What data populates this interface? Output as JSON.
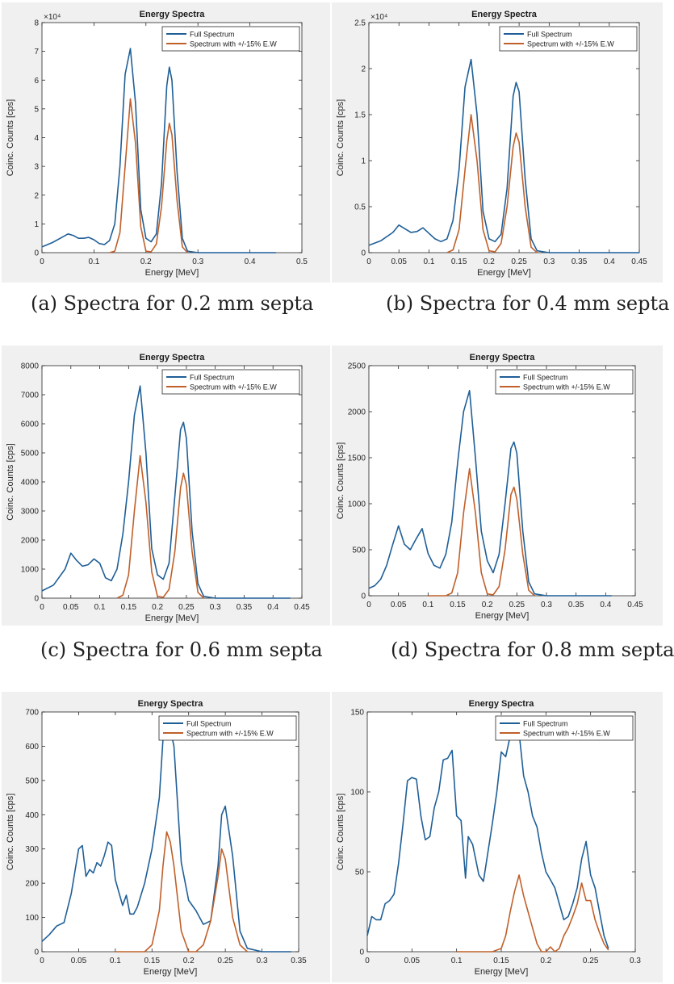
{
  "colors": {
    "full": "#1f5f97",
    "windowed": "#c0602a",
    "panel_bg": "#f0f0f0",
    "axes_bg": "#ffffff"
  },
  "captions": [
    "(a) Spectra for 0.2 mm septa",
    "(b) Spectra for 0.4 mm septa",
    "(c) Spectra for 0.6 mm septa",
    "(d) Spectra for 0.8 mm septa"
  ],
  "chart_data": [
    {
      "type": "line",
      "title": "Energy Spectra",
      "xlabel": "Energy [MeV]",
      "ylabel": "Coinc. Counts [cps]",
      "xlim": [
        0,
        0.5
      ],
      "ylim": [
        0,
        80000
      ],
      "xticks": [
        0,
        0.1,
        0.2,
        0.3,
        0.4,
        0.5
      ],
      "xtick_labels": [
        "0",
        "0.1",
        "0.2",
        "0.3",
        "0.4",
        "0.5"
      ],
      "yticks": [
        0,
        10000,
        20000,
        30000,
        40000,
        50000,
        60000,
        70000,
        80000
      ],
      "ytick_labels": [
        "0",
        "1",
        "2",
        "3",
        "4",
        "5",
        "6",
        "7",
        "8"
      ],
      "exponent_label": "×10⁴",
      "legend_position": "top-right",
      "series": [
        {
          "name": "Full Spectrum",
          "color": "#1f5f97",
          "x": [
            0,
            0.02,
            0.04,
            0.05,
            0.06,
            0.07,
            0.08,
            0.09,
            0.1,
            0.11,
            0.12,
            0.13,
            0.14,
            0.15,
            0.16,
            0.17,
            0.18,
            0.19,
            0.2,
            0.21,
            0.22,
            0.23,
            0.24,
            0.245,
            0.25,
            0.26,
            0.27,
            0.28,
            0.3,
            0.35,
            0.4,
            0.45
          ],
          "y": [
            2000,
            3500,
            5500,
            6500,
            6000,
            5000,
            5000,
            5300,
            4500,
            3200,
            2800,
            4200,
            10000,
            30000,
            62000,
            71000,
            52000,
            15000,
            5000,
            3800,
            6500,
            24000,
            58000,
            64500,
            60000,
            28000,
            5000,
            500,
            0,
            0,
            0,
            0
          ]
        },
        {
          "name": "Spectrum with +/-15% E.W",
          "color": "#c0602a",
          "x": [
            0.13,
            0.14,
            0.15,
            0.16,
            0.17,
            0.18,
            0.19,
            0.2,
            0.21,
            0.22,
            0.23,
            0.24,
            0.245,
            0.25,
            0.26,
            0.27,
            0.28
          ],
          "y": [
            0,
            500,
            7000,
            30000,
            53500,
            38000,
            9000,
            500,
            300,
            3000,
            16000,
            39000,
            45000,
            41000,
            18000,
            2000,
            0
          ]
        }
      ]
    },
    {
      "type": "line",
      "title": "Energy Spectra",
      "xlabel": "Energy [MeV]",
      "ylabel": "Coinc. Counts [cps]",
      "xlim": [
        0,
        0.45
      ],
      "ylim": [
        0,
        25000
      ],
      "xticks": [
        0,
        0.05,
        0.1,
        0.15,
        0.2,
        0.25,
        0.3,
        0.35,
        0.4,
        0.45
      ],
      "xtick_labels": [
        "0",
        "0.05",
        "0.1",
        "0.15",
        "0.2",
        "0.25",
        "0.3",
        "0.35",
        "0.4",
        "0.45"
      ],
      "yticks": [
        0,
        5000,
        10000,
        15000,
        20000,
        25000
      ],
      "ytick_labels": [
        "0",
        "0.5",
        "1",
        "1.5",
        "2",
        "2.5"
      ],
      "exponent_label": "×10⁴",
      "legend_position": "top-right",
      "series": [
        {
          "name": "Full Spectrum",
          "color": "#1f5f97",
          "x": [
            0,
            0.02,
            0.04,
            0.05,
            0.06,
            0.07,
            0.08,
            0.09,
            0.1,
            0.11,
            0.12,
            0.13,
            0.14,
            0.15,
            0.16,
            0.17,
            0.18,
            0.19,
            0.2,
            0.21,
            0.22,
            0.23,
            0.24,
            0.245,
            0.25,
            0.26,
            0.27,
            0.28,
            0.3,
            0.35,
            0.4,
            0.45
          ],
          "y": [
            800,
            1300,
            2200,
            3000,
            2600,
            2200,
            2300,
            2700,
            2100,
            1500,
            1200,
            1500,
            3500,
            9000,
            18000,
            21000,
            15000,
            4500,
            1500,
            1200,
            2000,
            7000,
            17000,
            18500,
            17500,
            8000,
            1500,
            200,
            0,
            0,
            0,
            0
          ]
        },
        {
          "name": "Spectrum with +/-15% E.W",
          "color": "#c0602a",
          "x": [
            0.13,
            0.14,
            0.15,
            0.16,
            0.17,
            0.18,
            0.19,
            0.2,
            0.21,
            0.22,
            0.23,
            0.24,
            0.245,
            0.25,
            0.26,
            0.27,
            0.28
          ],
          "y": [
            0,
            300,
            2500,
            9000,
            15000,
            10000,
            2500,
            200,
            100,
            1000,
            5000,
            11500,
            13000,
            12000,
            5000,
            600,
            0
          ]
        }
      ]
    },
    {
      "type": "line",
      "title": "Energy Spectra",
      "xlabel": "Energy [MeV]",
      "ylabel": "Coinc. Counts [cps]",
      "xlim": [
        0,
        0.45
      ],
      "ylim": [
        0,
        8000
      ],
      "xticks": [
        0,
        0.05,
        0.1,
        0.15,
        0.2,
        0.25,
        0.3,
        0.35,
        0.4,
        0.45
      ],
      "xtick_labels": [
        "0",
        "0.05",
        "0.1",
        "0.15",
        "0.2",
        "0.25",
        "0.3",
        "0.35",
        "0.4",
        "0.45"
      ],
      "yticks": [
        0,
        1000,
        2000,
        3000,
        4000,
        5000,
        6000,
        7000,
        8000
      ],
      "ytick_labels": [
        "0",
        "1000",
        "2000",
        "3000",
        "4000",
        "5000",
        "6000",
        "7000",
        "8000"
      ],
      "exponent_label": "",
      "legend_position": "top-right",
      "series": [
        {
          "name": "Full Spectrum",
          "color": "#1f5f97",
          "x": [
            0,
            0.02,
            0.04,
            0.05,
            0.06,
            0.07,
            0.08,
            0.09,
            0.1,
            0.11,
            0.12,
            0.13,
            0.14,
            0.15,
            0.16,
            0.17,
            0.18,
            0.19,
            0.2,
            0.21,
            0.22,
            0.23,
            0.24,
            0.245,
            0.25,
            0.26,
            0.27,
            0.28,
            0.3,
            0.35,
            0.4,
            0.43
          ],
          "y": [
            250,
            450,
            1000,
            1550,
            1300,
            1100,
            1150,
            1350,
            1200,
            700,
            600,
            1000,
            2200,
            4000,
            6300,
            7300,
            5000,
            1700,
            800,
            650,
            1200,
            3500,
            5800,
            6050,
            5500,
            2300,
            500,
            60,
            0,
            0,
            0,
            0
          ]
        },
        {
          "name": "Spectrum with +/-15% E.W",
          "color": "#c0602a",
          "x": [
            0.13,
            0.14,
            0.15,
            0.16,
            0.17,
            0.18,
            0.19,
            0.2,
            0.21,
            0.22,
            0.23,
            0.24,
            0.245,
            0.25,
            0.26,
            0.27,
            0.28
          ],
          "y": [
            0,
            100,
            800,
            3000,
            4900,
            3300,
            900,
            60,
            30,
            300,
            1600,
            3800,
            4300,
            3900,
            1600,
            200,
            0
          ]
        }
      ]
    },
    {
      "type": "line",
      "title": "Energy Spectra",
      "xlabel": "Energy [MeV]",
      "ylabel": "Coinc. Counts [cps]",
      "xlim": [
        0,
        0.45
      ],
      "ylim": [
        0,
        2500
      ],
      "xticks": [
        0,
        0.05,
        0.1,
        0.15,
        0.2,
        0.25,
        0.3,
        0.35,
        0.4,
        0.45
      ],
      "xtick_labels": [
        "0",
        "0.05",
        "0.1",
        "0.15",
        "0.2",
        "0.25",
        "0.3",
        "0.35",
        "0.4",
        "0.45"
      ],
      "yticks": [
        0,
        500,
        1000,
        1500,
        2000,
        2500
      ],
      "ytick_labels": [
        "0",
        "500",
        "1000",
        "1500",
        "2000",
        "2500"
      ],
      "exponent_label": "",
      "legend_position": "top-right",
      "series": [
        {
          "name": "Full Spectrum",
          "color": "#1f5f97",
          "x": [
            0,
            0.01,
            0.02,
            0.03,
            0.04,
            0.05,
            0.06,
            0.07,
            0.08,
            0.09,
            0.1,
            0.11,
            0.12,
            0.13,
            0.14,
            0.15,
            0.16,
            0.17,
            0.18,
            0.19,
            0.2,
            0.21,
            0.22,
            0.23,
            0.24,
            0.245,
            0.25,
            0.26,
            0.27,
            0.28,
            0.3,
            0.35,
            0.4,
            0.41
          ],
          "y": [
            80,
            110,
            180,
            330,
            550,
            760,
            560,
            500,
            620,
            730,
            460,
            330,
            300,
            450,
            800,
            1450,
            2000,
            2230,
            1500,
            700,
            380,
            250,
            450,
            1000,
            1600,
            1670,
            1550,
            700,
            150,
            20,
            0,
            0,
            0,
            0
          ]
        },
        {
          "name": "Spectrum with +/-15% E.W",
          "color": "#c0602a",
          "x": [
            0.1,
            0.13,
            0.14,
            0.15,
            0.16,
            0.17,
            0.18,
            0.19,
            0.2,
            0.21,
            0.22,
            0.23,
            0.24,
            0.245,
            0.25,
            0.26,
            0.27,
            0.28
          ],
          "y": [
            0,
            0,
            30,
            250,
            900,
            1380,
            900,
            250,
            20,
            10,
            100,
            500,
            1100,
            1180,
            1050,
            450,
            60,
            0
          ]
        }
      ]
    },
    {
      "type": "line",
      "title": "Energy Spectra",
      "xlabel": "Energy [MeV]",
      "ylabel": "Coinc. Counts [cps]",
      "xlim": [
        0,
        0.35
      ],
      "ylim": [
        0,
        700
      ],
      "xticks": [
        0,
        0.05,
        0.1,
        0.15,
        0.2,
        0.25,
        0.3,
        0.35
      ],
      "xtick_labels": [
        "0",
        "0.05",
        "0.1",
        "0.15",
        "0.2",
        "0.25",
        "0.3",
        "0.35"
      ],
      "yticks": [
        0,
        100,
        200,
        300,
        400,
        500,
        600,
        700
      ],
      "ytick_labels": [
        "0",
        "100",
        "200",
        "300",
        "400",
        "500",
        "600",
        "700"
      ],
      "exponent_label": "",
      "legend_position": "top-right",
      "series": [
        {
          "name": "Full Spectrum",
          "color": "#1f5f97",
          "x": [
            0,
            0.01,
            0.02,
            0.03,
            0.04,
            0.05,
            0.055,
            0.06,
            0.065,
            0.07,
            0.075,
            0.08,
            0.085,
            0.09,
            0.095,
            0.1,
            0.11,
            0.115,
            0.12,
            0.125,
            0.13,
            0.14,
            0.15,
            0.16,
            0.165,
            0.17,
            0.175,
            0.18,
            0.19,
            0.2,
            0.21,
            0.22,
            0.23,
            0.24,
            0.245,
            0.25,
            0.26,
            0.27,
            0.28,
            0.3,
            0.34
          ],
          "y": [
            30,
            50,
            75,
            85,
            170,
            300,
            310,
            220,
            240,
            230,
            260,
            250,
            280,
            320,
            310,
            210,
            135,
            165,
            110,
            110,
            130,
            200,
            300,
            450,
            620,
            680,
            650,
            600,
            260,
            150,
            120,
            80,
            90,
            250,
            400,
            425,
            280,
            60,
            10,
            0,
            0
          ]
        },
        {
          "name": "Spectrum with +/-15% E.W",
          "color": "#c0602a",
          "x": [
            0.1,
            0.14,
            0.15,
            0.16,
            0.165,
            0.17,
            0.175,
            0.18,
            0.19,
            0.2,
            0.21,
            0.22,
            0.23,
            0.24,
            0.245,
            0.25,
            0.26,
            0.27,
            0.28
          ],
          "y": [
            0,
            0,
            20,
            120,
            250,
            350,
            320,
            250,
            60,
            0,
            0,
            20,
            90,
            220,
            300,
            270,
            100,
            20,
            0
          ]
        }
      ]
    },
    {
      "type": "line",
      "title": "Energy Spectra",
      "xlabel": "Energy [MeV]",
      "ylabel": "Coinc. Counts [cps]",
      "xlim": [
        0,
        0.3
      ],
      "ylim": [
        0,
        150
      ],
      "xticks": [
        0,
        0.05,
        0.1,
        0.15,
        0.2,
        0.25,
        0.3
      ],
      "xtick_labels": [
        "0",
        "0.05",
        "0.1",
        "0.15",
        "0.2",
        "0.25",
        "0.3"
      ],
      "yticks": [
        0,
        50,
        100,
        150
      ],
      "ytick_labels": [
        "0",
        "50",
        "100",
        "150"
      ],
      "exponent_label": "",
      "legend_position": "top-right",
      "series": [
        {
          "name": "Full Spectrum",
          "color": "#1f5f97",
          "x": [
            0,
            0.005,
            0.01,
            0.015,
            0.02,
            0.025,
            0.03,
            0.035,
            0.04,
            0.045,
            0.05,
            0.055,
            0.06,
            0.065,
            0.07,
            0.075,
            0.08,
            0.085,
            0.09,
            0.095,
            0.1,
            0.105,
            0.11,
            0.113,
            0.118,
            0.125,
            0.13,
            0.135,
            0.14,
            0.145,
            0.15,
            0.155,
            0.16,
            0.165,
            0.17,
            0.175,
            0.18,
            0.185,
            0.19,
            0.195,
            0.2,
            0.205,
            0.21,
            0.215,
            0.22,
            0.225,
            0.23,
            0.235,
            0.24,
            0.245,
            0.25,
            0.255,
            0.26,
            0.265,
            0.27
          ],
          "y": [
            10,
            22,
            20,
            20,
            30,
            32,
            36,
            55,
            80,
            107,
            109,
            108,
            85,
            70,
            72,
            90,
            100,
            120,
            121,
            126,
            85,
            82,
            46,
            72,
            67,
            48,
            44,
            62,
            80,
            100,
            125,
            122,
            135,
            140,
            137,
            110,
            100,
            85,
            78,
            62,
            50,
            45,
            40,
            30,
            20,
            22,
            30,
            40,
            58,
            69,
            48,
            40,
            25,
            10,
            2
          ]
        },
        {
          "name": "Spectrum with +/-15% E.W",
          "color": "#c0602a",
          "x": [
            0.1,
            0.14,
            0.15,
            0.155,
            0.16,
            0.165,
            0.17,
            0.175,
            0.18,
            0.185,
            0.19,
            0.195,
            0.2,
            0.205,
            0.21,
            0.215,
            0.22,
            0.225,
            0.23,
            0.235,
            0.24,
            0.245,
            0.25,
            0.255,
            0.26,
            0.265,
            0.27
          ],
          "y": [
            0,
            0,
            2,
            10,
            25,
            38,
            48,
            35,
            25,
            15,
            5,
            0,
            0,
            3,
            0,
            2,
            10,
            15,
            22,
            30,
            43,
            32,
            32,
            20,
            12,
            5,
            1
          ]
        }
      ]
    }
  ]
}
